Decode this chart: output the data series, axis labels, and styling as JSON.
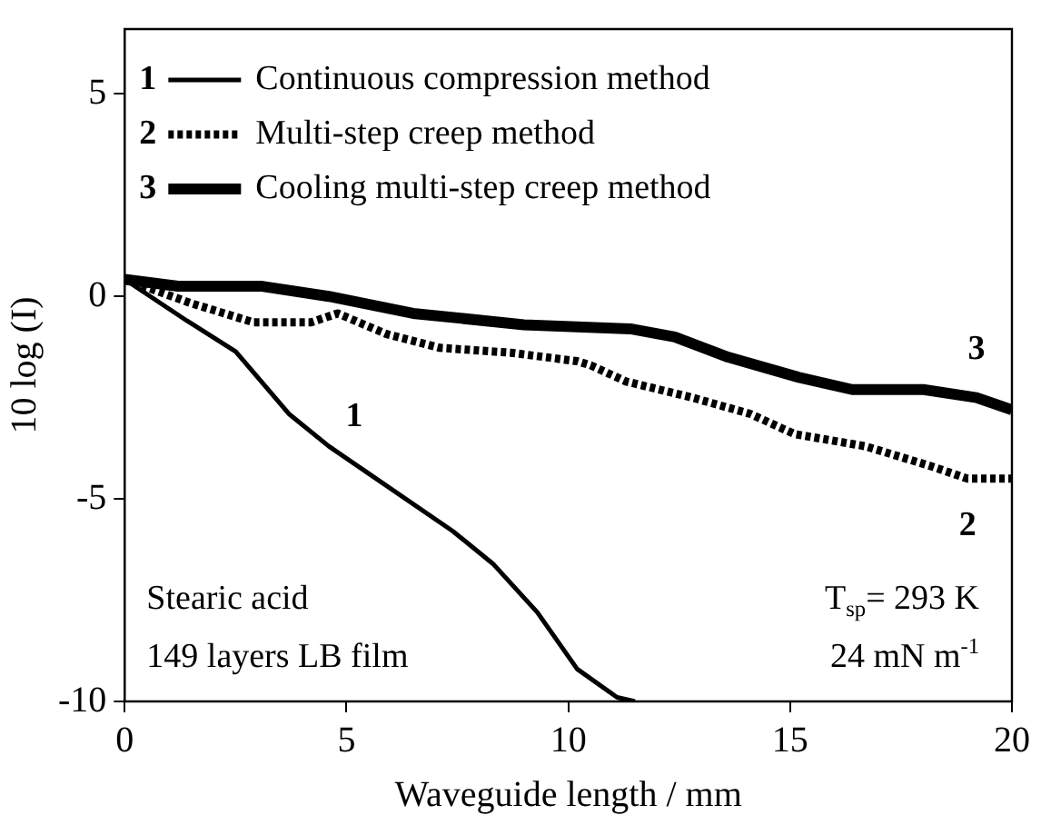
{
  "chart_data": {
    "type": "line",
    "xlabel": "Waveguide length / mm",
    "ylabel": "10 log (I)",
    "xlim": [
      0,
      20
    ],
    "xticks": [
      0,
      5,
      10,
      15,
      20
    ],
    "ylim": [
      -10,
      6.6
    ],
    "yticks": [
      -10,
      -5,
      0,
      5
    ],
    "grid": false,
    "legend": "top left",
    "marker": "none",
    "series": [
      {
        "name": "Continuous compression method",
        "color": "#000000",
        "line_style": "solid",
        "x": [
          0,
          1.4,
          2.5,
          3.7,
          4.6,
          5.4,
          7.4,
          8.3,
          9.3,
          10.2,
          11.1,
          11.5
        ],
        "values": [
          0.42,
          -0.6,
          -1.36,
          -2.9,
          -3.7,
          -4.3,
          -5.8,
          -6.6,
          -7.8,
          -9.2,
          -9.9,
          -10
        ]
      },
      {
        "name": "Multi-step creep method",
        "color": "#000000",
        "line_style": "dotted",
        "x": [
          0,
          1.5,
          2.9,
          4.2,
          4.8,
          5.9,
          7.1,
          8.7,
          10.2,
          10.5,
          11.3,
          12.8,
          14.1,
          15.1,
          16.7,
          18.2,
          19,
          20
        ],
        "values": [
          0.42,
          -0.17,
          -0.64,
          -0.64,
          -0.42,
          -0.93,
          -1.27,
          -1.39,
          -1.6,
          -1.7,
          -2.1,
          -2.5,
          -2.9,
          -3.4,
          -3.7,
          -4.2,
          -4.5,
          -4.5
        ]
      },
      {
        "name": "Cooling multi-step creep method",
        "color": "#000000",
        "line_style": "solid",
        "x": [
          0,
          1.2,
          3.1,
          4.6,
          6.5,
          9,
          11.4,
          12.4,
          13.6,
          15.2,
          16.4,
          18,
          19.2,
          20
        ],
        "values": [
          0.42,
          0.25,
          0.25,
          0,
          -0.42,
          -0.7,
          -0.8,
          -1,
          -1.5,
          -2,
          -2.3,
          -2.3,
          -2.5,
          -2.8
        ]
      }
    ],
    "annotations": [
      "1",
      "2",
      "3",
      "Stearic acid",
      "149 layers LB film",
      "T$_{sp}$= 293 K",
      "24 mN m$^{-1}$"
    ]
  }
}
